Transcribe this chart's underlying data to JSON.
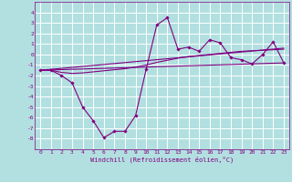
{
  "background_color": "#b2e0e0",
  "grid_color": "#ffffff",
  "line_color": "#800080",
  "marker_color": "#800080",
  "xlabel": "Windchill (Refroidissement éolien,°C)",
  "xlim": [
    -0.5,
    23.5
  ],
  "ylim": [
    -9,
    5
  ],
  "yticks": [
    -8,
    -7,
    -6,
    -5,
    -4,
    -3,
    -2,
    -1,
    0,
    1,
    2,
    3,
    4
  ],
  "xticks": [
    0,
    1,
    2,
    3,
    4,
    5,
    6,
    7,
    8,
    9,
    10,
    11,
    12,
    13,
    14,
    15,
    16,
    17,
    18,
    19,
    20,
    21,
    22,
    23
  ],
  "series1_x": [
    0,
    1,
    2,
    3,
    4,
    5,
    6,
    7,
    8,
    9,
    10,
    11,
    12,
    13,
    14,
    15,
    16,
    17,
    18,
    19,
    20,
    21,
    22,
    23
  ],
  "series1_y": [
    -1.5,
    -1.5,
    -2.0,
    -2.7,
    -5.0,
    -6.3,
    -7.9,
    -7.3,
    -7.3,
    -5.8,
    -1.4,
    2.8,
    3.5,
    0.5,
    0.7,
    0.3,
    1.4,
    1.1,
    -0.3,
    -0.5,
    -0.9,
    0.0,
    1.2,
    -0.8
  ],
  "series2_x": [
    0,
    1,
    2,
    3,
    4,
    5,
    6,
    7,
    8,
    9,
    10,
    11,
    12,
    13,
    14,
    15,
    16,
    17,
    18,
    19,
    20,
    21,
    22,
    23
  ],
  "series2_y": [
    -1.5,
    -1.5,
    -1.7,
    -1.8,
    -1.75,
    -1.65,
    -1.55,
    -1.45,
    -1.35,
    -1.2,
    -1.0,
    -0.75,
    -0.55,
    -0.35,
    -0.2,
    -0.1,
    0.0,
    0.1,
    0.2,
    0.3,
    0.35,
    0.4,
    0.45,
    0.5
  ],
  "series3_x": [
    0,
    23
  ],
  "series3_y": [
    -1.5,
    -0.8
  ],
  "series4_x": [
    0,
    23
  ],
  "series4_y": [
    -1.5,
    0.6
  ]
}
